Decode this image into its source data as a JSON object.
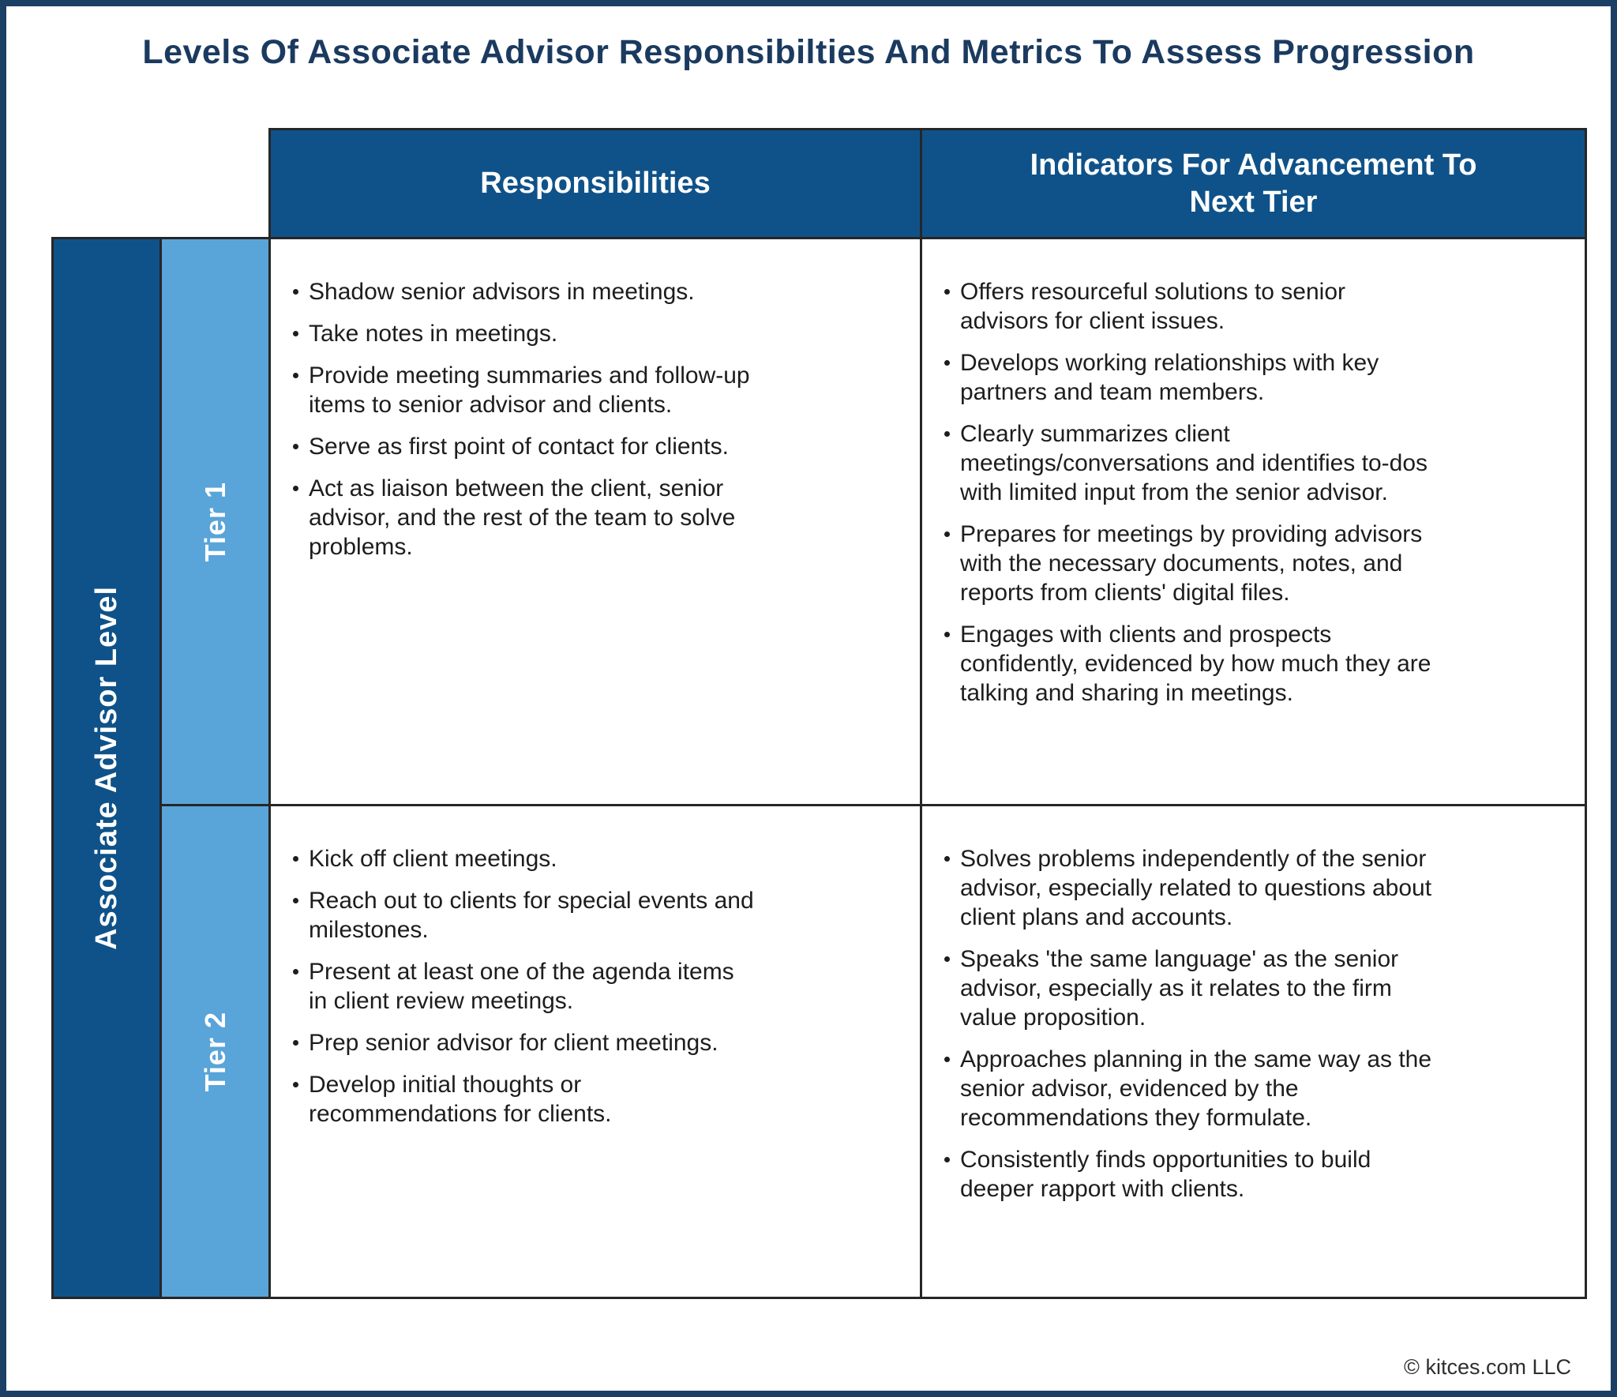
{
  "title": "Levels Of Associate Advisor Responsibilties And Metrics To Assess Progression",
  "footer": "© kitces.com LLC",
  "colors": {
    "navy_border": "#1C3F66",
    "header_blue": "#0F5289",
    "tier_blue": "#59A4D9",
    "title_navy": "#1B3A5F",
    "body_text": "#1D1D1D",
    "grid_line": "#262626"
  },
  "table": {
    "axis_label": "Associate Advisor Level",
    "headers": {
      "responsibilities": "Responsibilities",
      "indicators": "Indicators For Advancement To Next Tier"
    },
    "tiers": [
      {
        "label": "Tier 1",
        "responsibilities": [
          "Shadow senior advisors in meetings.",
          "Take notes in meetings.",
          "Provide meeting summaries and follow-up items to senior advisor and clients.",
          "Serve as first point of contact for clients.",
          "Act as liaison between the client, senior advisor, and the rest of the team to solve problems."
        ],
        "indicators": [
          "Offers resourceful solutions to senior advisors for client issues.",
          "Develops working relationships with key partners and team members.",
          "Clearly summarizes client meetings/conversations and identifies to-dos with limited input from the senior advisor.",
          "Prepares for meetings by providing advisors with the necessary documents, notes, and reports from clients' digital files.",
          "Engages with clients and prospects confidently, evidenced by how much they are talking and sharing in meetings."
        ]
      },
      {
        "label": "Tier 2",
        "responsibilities": [
          "Kick off client meetings.",
          "Reach out to clients for special events and milestones.",
          "Present at least one of the agenda items in client review meetings.",
          "Prep senior advisor for client meetings.",
          "Develop initial thoughts or recommendations for clients."
        ],
        "indicators": [
          "Solves problems independently of the senior advisor, especially related to questions about client plans and accounts.",
          "Speaks 'the same language' as the senior advisor, especially as it relates to the firm value proposition.",
          "Approaches planning in the same way as the senior advisor, evidenced by the recommendations they formulate.",
          "Consistently finds opportunities to build deeper rapport with clients."
        ]
      }
    ]
  }
}
